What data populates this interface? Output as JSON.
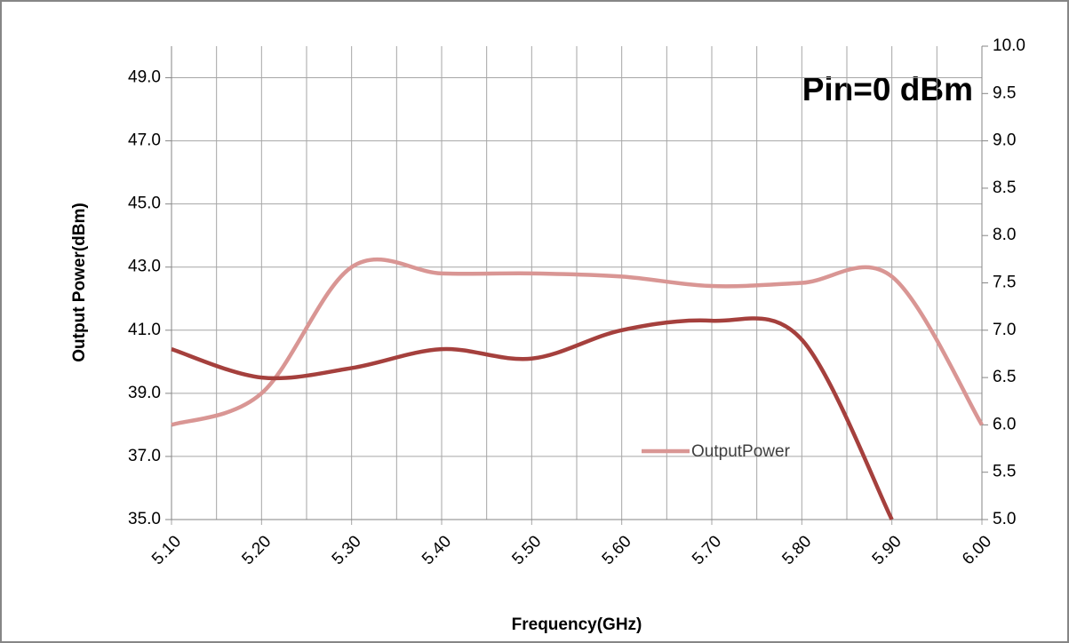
{
  "chart_data": {
    "type": "line",
    "annotation": "Pin=0 dBm",
    "xlabel": "Frequency(GHz)",
    "ylabel": "Output Power(dBm)",
    "x": [
      5.1,
      5.2,
      5.3,
      5.4,
      5.5,
      5.6,
      5.7,
      5.8,
      5.9,
      6.0
    ],
    "series": [
      {
        "name": "OutputPower",
        "color": "#d99694",
        "axis": "y",
        "values": [
          38.0,
          39.0,
          43.0,
          42.8,
          42.8,
          42.7,
          42.4,
          42.5,
          42.7,
          38.0
        ]
      },
      {
        "color": "#a5403d",
        "axis": "y2",
        "values": [
          6.8,
          6.5,
          6.6,
          6.8,
          6.7,
          7.0,
          7.1,
          6.9,
          5.0,
          null
        ]
      }
    ],
    "xlim": [
      5.1,
      6.0
    ],
    "xticks": [
      {
        "value": 5.1,
        "label": "5.10"
      },
      {
        "value": 5.2,
        "label": "5.20"
      },
      {
        "value": 5.3,
        "label": "5.30"
      },
      {
        "value": 5.4,
        "label": "5.40"
      },
      {
        "value": 5.5,
        "label": "5.50"
      },
      {
        "value": 5.6,
        "label": "5.60"
      },
      {
        "value": 5.7,
        "label": "5.70"
      },
      {
        "value": 5.8,
        "label": "5.80"
      },
      {
        "value": 5.9,
        "label": "5.90"
      },
      {
        "value": 6.0,
        "label": "6.00"
      }
    ],
    "xminor": [
      5.15,
      5.25,
      5.35,
      5.45,
      5.55,
      5.65,
      5.75,
      5.85,
      5.95
    ],
    "ylim": [
      35,
      50
    ],
    "yticks": [
      {
        "value": 35,
        "label": "35.0"
      },
      {
        "value": 37,
        "label": "37.0"
      },
      {
        "value": 39,
        "label": "39.0"
      },
      {
        "value": 41,
        "label": "41.0"
      },
      {
        "value": 43,
        "label": "43.0"
      },
      {
        "value": 45,
        "label": "45.0"
      },
      {
        "value": 47,
        "label": "47.0"
      },
      {
        "value": 49,
        "label": "49.0"
      }
    ],
    "y2lim": [
      5,
      10
    ],
    "y2ticks": [
      {
        "value": 5,
        "label": "5.0"
      },
      5.5,
      {
        "value": 6,
        "label": "6.0"
      },
      6.5,
      {
        "value": 7,
        "label": "7.0"
      },
      7.5,
      {
        "value": 8,
        "label": "8.0"
      },
      8.5,
      {
        "value": 9,
        "label": "9.0"
      },
      9.5,
      {
        "value": 10,
        "label": "10.0"
      }
    ],
    "grid": true
  }
}
